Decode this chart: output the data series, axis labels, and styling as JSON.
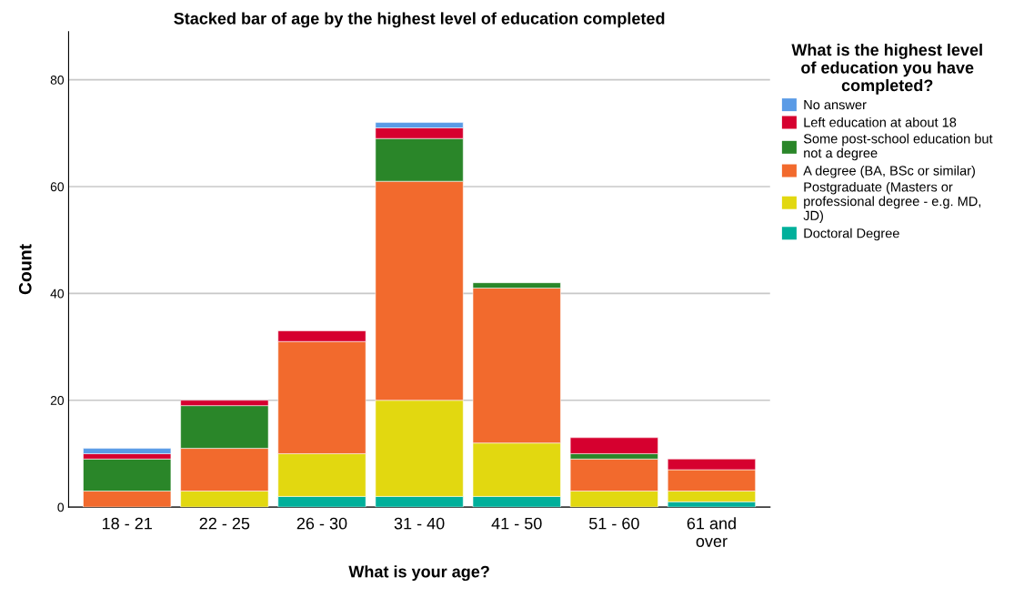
{
  "chart_data": {
    "type": "bar",
    "stacked": true,
    "title": "Stacked bar of age by the highest level of education completed",
    "xlabel": "What is your age?",
    "ylabel": "Count",
    "legend_title": "What is the highest level\nof education you have\ncompleted?",
    "categories": [
      "18 - 21",
      "22 - 25",
      "26 - 30",
      "31 - 40",
      "41 - 50",
      "51 - 60",
      "61 and\nover"
    ],
    "series": [
      {
        "name": "Doctoral Degree",
        "color": "#00b09b",
        "values": [
          0,
          0,
          2,
          2,
          2,
          0,
          1
        ]
      },
      {
        "name": "Postgraduate (Masters or\nprofessional degree - e.g. MD,\nJD)",
        "color": "#e2d810",
        "values": [
          0,
          3,
          8,
          18,
          10,
          3,
          2
        ]
      },
      {
        "name": "A degree (BA, BSc or similar)",
        "color": "#f26a2d",
        "values": [
          3,
          8,
          21,
          41,
          29,
          6,
          4
        ]
      },
      {
        "name": "Some post-school education but\nnot a degree",
        "color": "#2a8629",
        "values": [
          6,
          8,
          0,
          8,
          1,
          1,
          0
        ]
      },
      {
        "name": "Left education at about 18",
        "color": "#d6002f",
        "values": [
          1,
          1,
          2,
          2,
          0,
          3,
          2
        ]
      },
      {
        "name": "No answer",
        "color": "#5a9be6",
        "values": [
          1,
          0,
          0,
          1,
          0,
          0,
          0
        ]
      }
    ],
    "ylim": [
      0,
      89
    ],
    "yticks": [
      0,
      20,
      40,
      60,
      80
    ],
    "grid": "y",
    "legend": "right"
  }
}
